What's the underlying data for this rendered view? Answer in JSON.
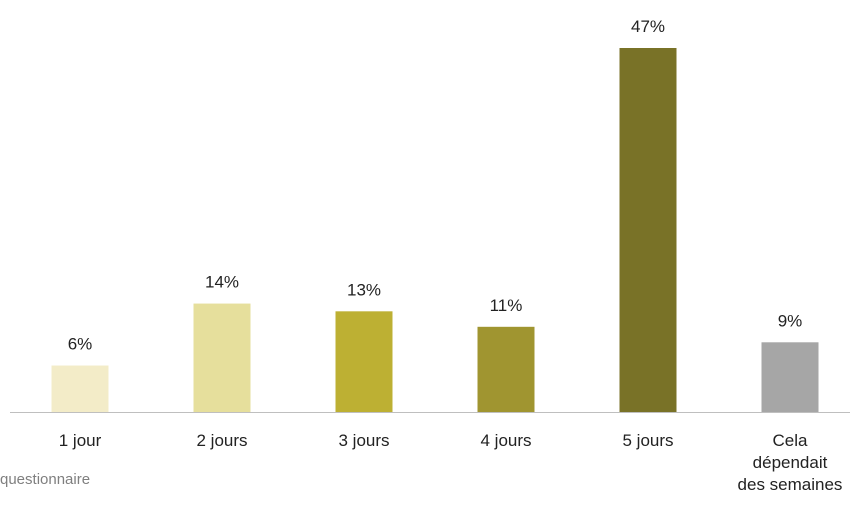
{
  "chart_data": {
    "type": "bar",
    "categories": [
      "1 jour",
      "2 jours",
      "3 jours",
      "4 jours",
      "5 jours",
      "Cela\ndépendait\ndes semaines"
    ],
    "values": [
      6,
      14,
      13,
      11,
      47,
      9
    ],
    "value_labels": [
      "6%",
      "14%",
      "13%",
      "11%",
      "47%",
      "9%"
    ],
    "colors": [
      "#f3ecc8",
      "#e6df9c",
      "#bdb033",
      "#a09530",
      "#797227",
      "#a6a6a6"
    ],
    "footnote": "questionnaire"
  }
}
